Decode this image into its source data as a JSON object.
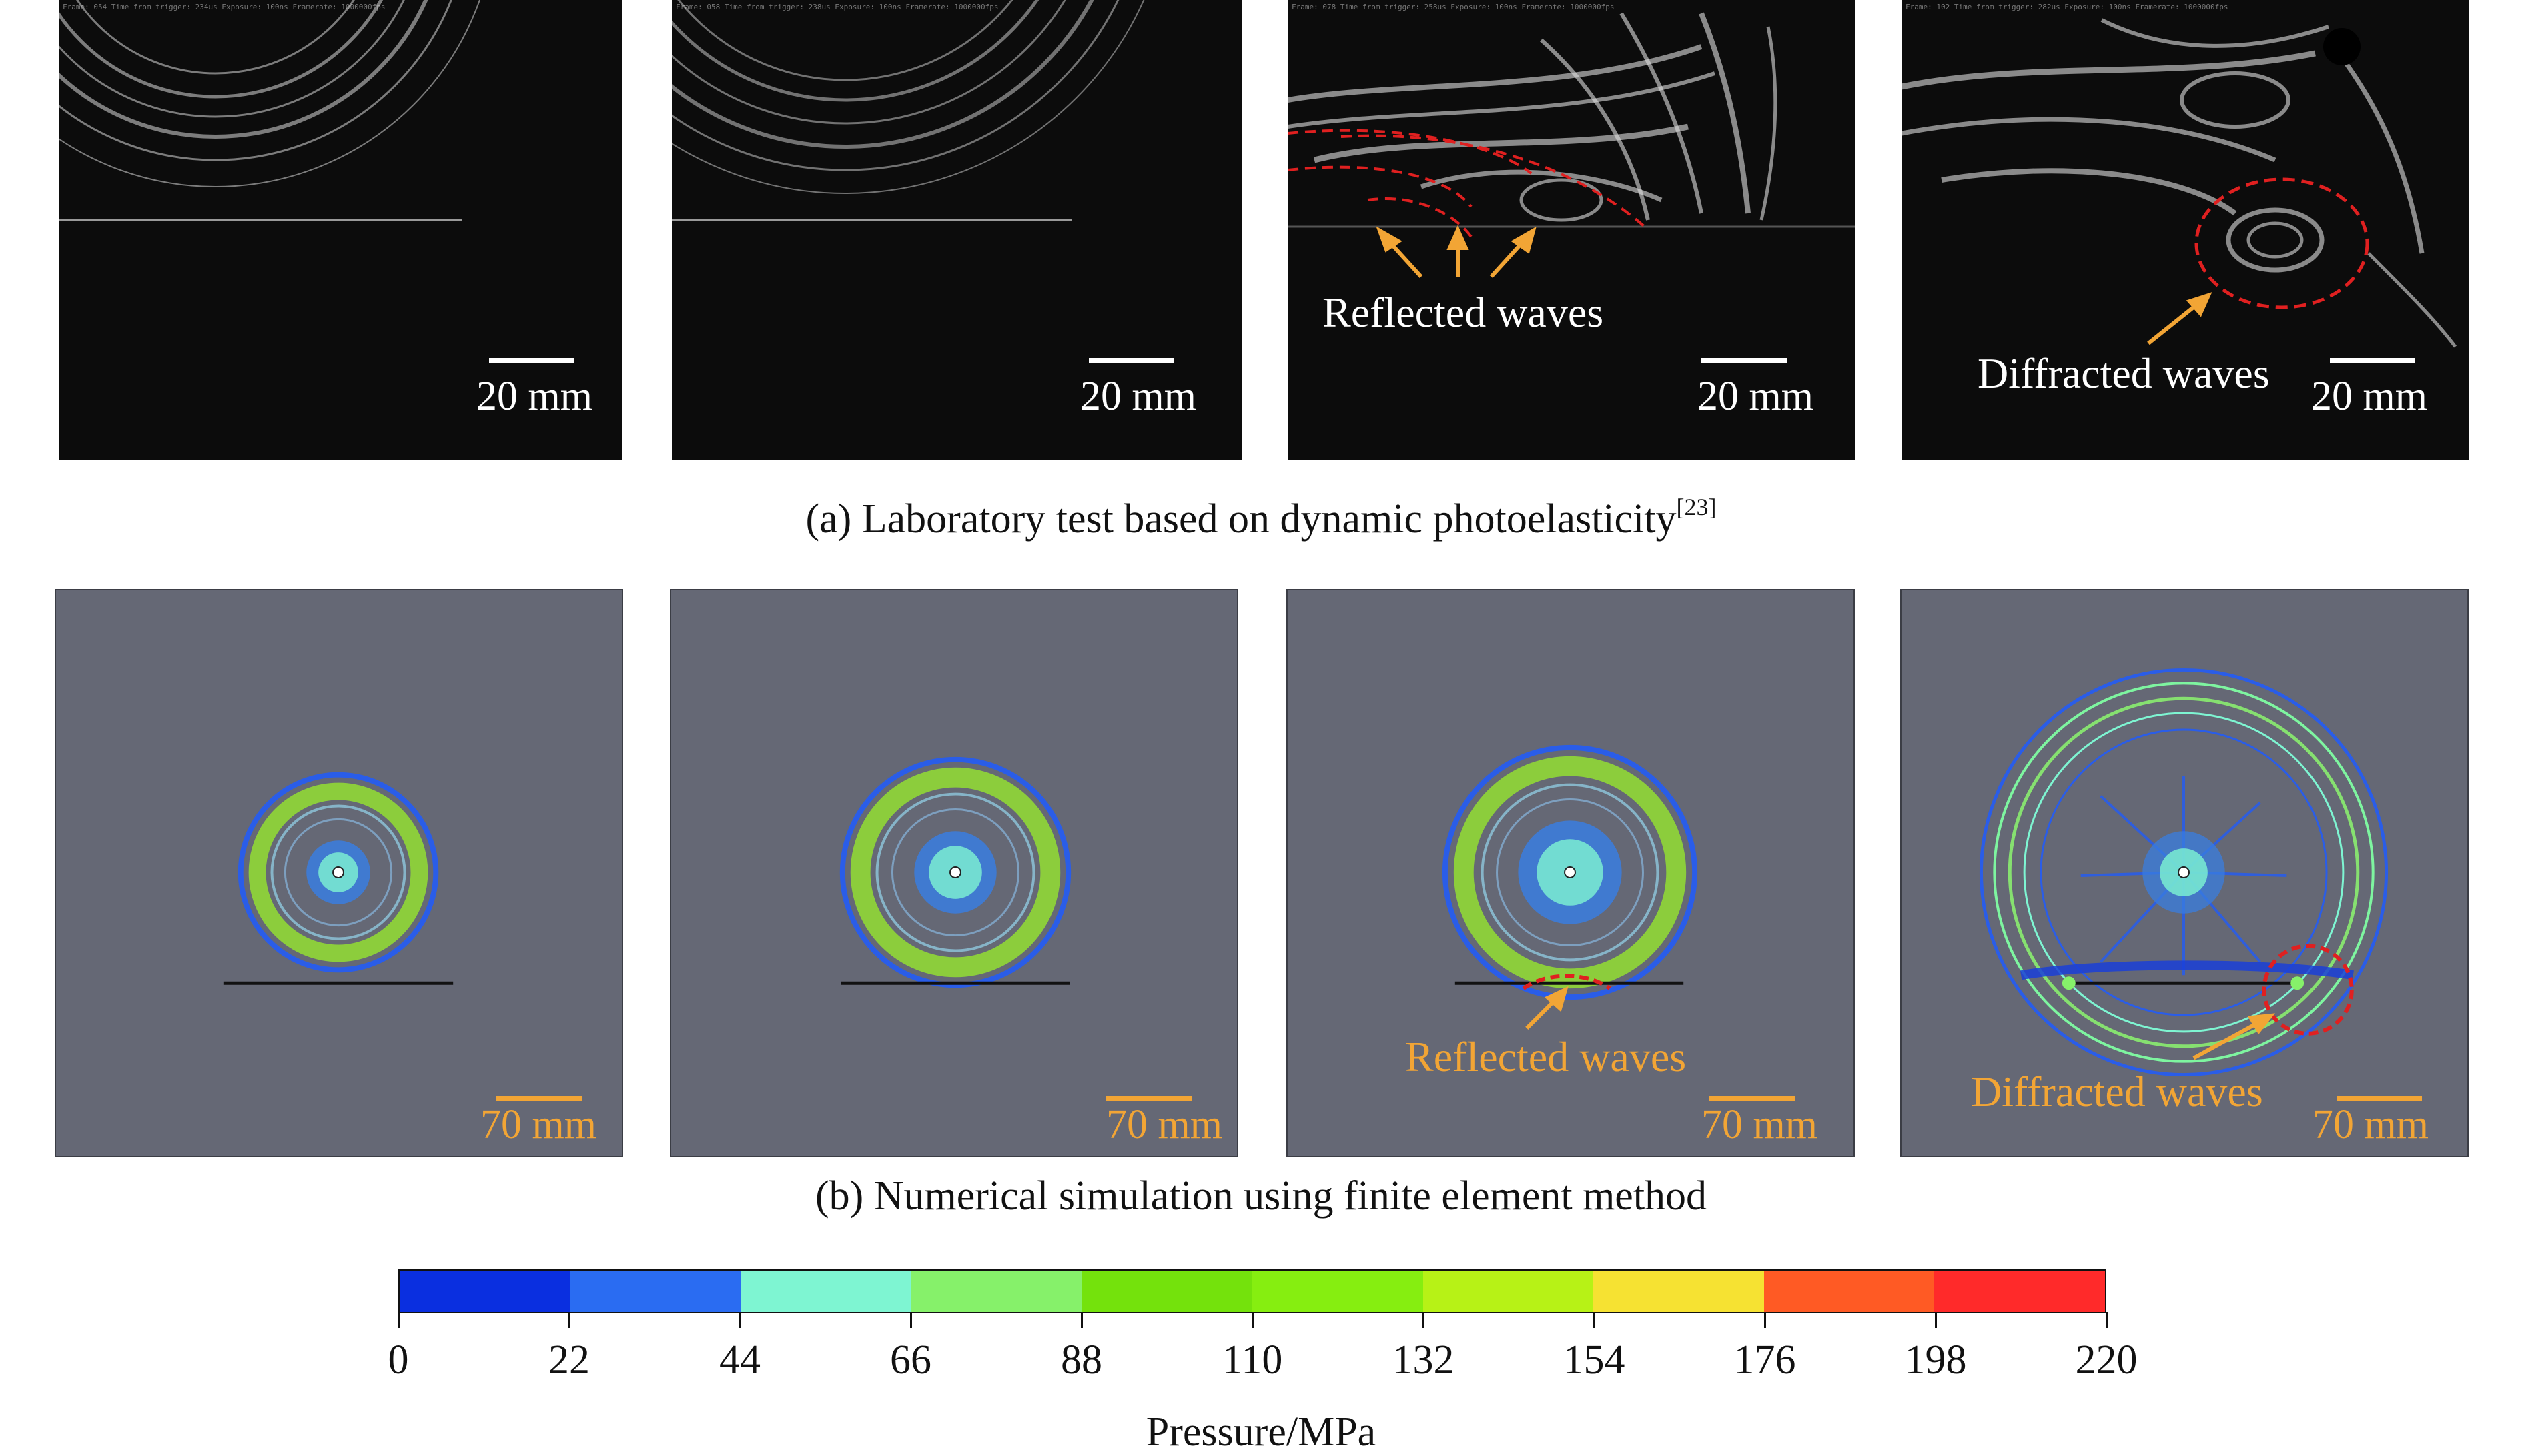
{
  "row_a": {
    "caption": "(a) Laboratory test based on dynamic photoelasticity",
    "caption_ref": "[23]",
    "panels": [
      {
        "hud": "Frame: 054   Time from trigger: 234us   Exposure: 100ns   Framerate: 1000000fps",
        "scale": "20 mm"
      },
      {
        "hud": "Frame: 058   Time from trigger: 238us   Exposure: 100ns   Framerate: 1000000fps",
        "scale": "20 mm"
      },
      {
        "hud": "Frame: 078   Time from trigger: 258us   Exposure: 100ns   Framerate: 1000000fps",
        "scale": "20 mm",
        "annotation": "Reflected waves"
      },
      {
        "hud": "Frame: 102   Time from trigger: 282us   Exposure: 100ns   Framerate: 1000000fps",
        "scale": "20 mm",
        "annotation": "Diffracted waves"
      }
    ]
  },
  "row_b": {
    "caption": "(b) Numerical simulation using finite element method",
    "panels": [
      {
        "scale": "70 mm"
      },
      {
        "scale": "70 mm"
      },
      {
        "scale": "70 mm",
        "annotation": "Reflected waves"
      },
      {
        "scale": "70 mm",
        "annotation": "Diffracted waves"
      }
    ]
  },
  "colorbar": {
    "unit_label": "Pressure/MPa",
    "ticks": [
      "0",
      "22",
      "44",
      "66",
      "88",
      "110",
      "132",
      "154",
      "176",
      "198",
      "220"
    ],
    "colors": [
      "#0a2fe0",
      "#2a6cf2",
      "#7ef5d2",
      "#86f16a",
      "#74e20c",
      "#86ee10",
      "#b7f216",
      "#f6e232",
      "#ff5a24",
      "#ff2a2a"
    ]
  },
  "colors": {
    "annotation_orange": "#f2a535",
    "marker_red": "#e02020",
    "sim_background": "#656875"
  }
}
